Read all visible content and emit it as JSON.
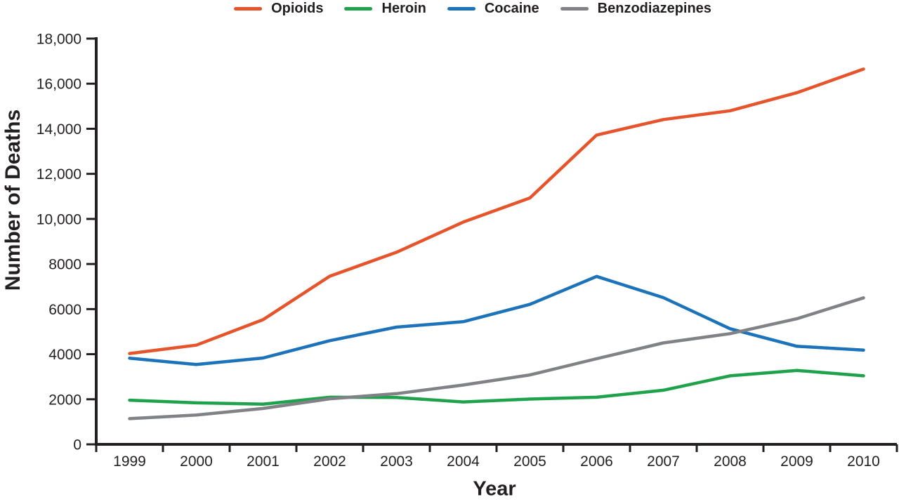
{
  "figure": {
    "background": "#ffffff",
    "text_color": "#231F20"
  },
  "chart_data": {
    "type": "line",
    "title": "",
    "xlabel": "Year",
    "ylabel": "Number of Deaths",
    "x": [
      1999,
      2000,
      2001,
      2002,
      2003,
      2004,
      2005,
      2006,
      2007,
      2008,
      2009,
      2010
    ],
    "x_tick_labels": [
      "1999",
      "2000",
      "2001",
      "2002",
      "2003",
      "2004",
      "2005",
      "2006",
      "2007",
      "2008",
      "2009",
      "2010"
    ],
    "y_ticks": [
      0,
      2000,
      4000,
      6000,
      8000,
      10000,
      12000,
      14000,
      16000,
      18000
    ],
    "y_tick_labels": [
      "0",
      "2000",
      "4000",
      "6000",
      "8000",
      "10,000",
      "12,000",
      "14,000",
      "16,000",
      "18,000"
    ],
    "ylim": [
      0,
      18000
    ],
    "grid": false,
    "legend_position": "top",
    "axis_color": "#231F20",
    "series": [
      {
        "name": "Opioids",
        "color": "#E6542B",
        "values": [
          4030,
          4400,
          5530,
          7460,
          8520,
          9860,
          10930,
          13720,
          14410,
          14800,
          15600,
          16650
        ]
      },
      {
        "name": "Heroin",
        "color": "#1FA24C",
        "values": [
          1960,
          1840,
          1780,
          2090,
          2080,
          1880,
          2010,
          2090,
          2400,
          3040,
          3280,
          3040
        ]
      },
      {
        "name": "Cocaine",
        "color": "#1C73B9",
        "values": [
          3820,
          3540,
          3830,
          4600,
          5200,
          5440,
          6210,
          7450,
          6510,
          5130,
          4350,
          4180
        ]
      },
      {
        "name": "Benzodiazepines",
        "color": "#818285",
        "values": [
          1140,
          1300,
          1590,
          2020,
          2250,
          2630,
          3080,
          3800,
          4500,
          4910,
          5570,
          6500
        ]
      }
    ]
  }
}
